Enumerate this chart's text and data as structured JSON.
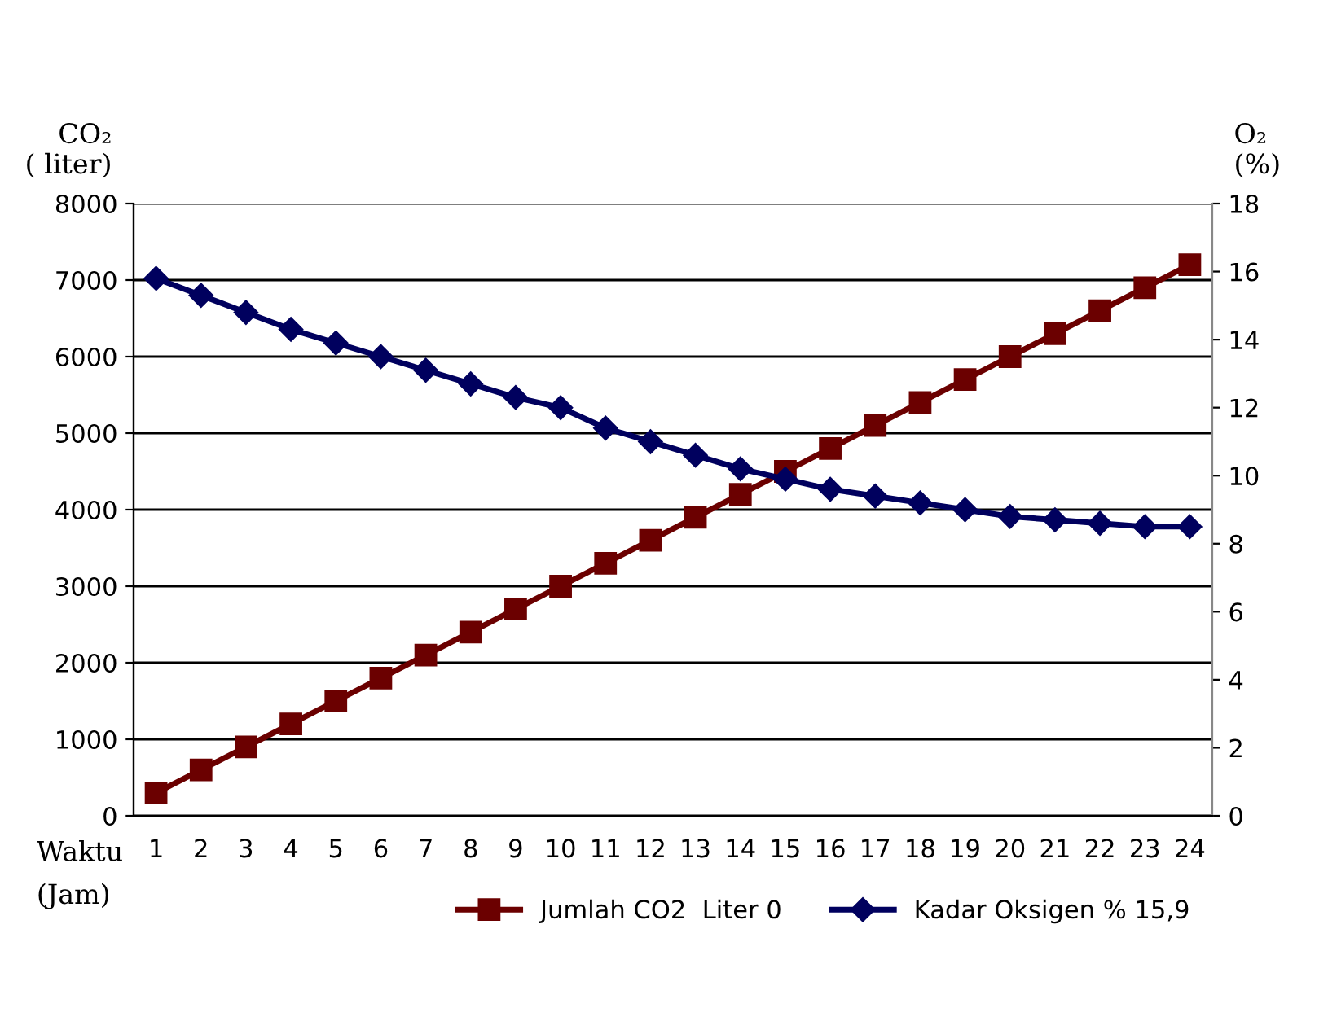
{
  "chart_data": {
    "type": "line",
    "ylabel": "CO₂\n( liter)",
    "y2label": "O₂\n(%)",
    "xlabel": "Waktu\n(Jam)",
    "categories": [
      "1",
      "2",
      "3",
      "4",
      "5",
      "6",
      "7",
      "8",
      "9",
      "10",
      "11",
      "12",
      "13",
      "14",
      "15",
      "16",
      "17",
      "18",
      "19",
      "20",
      "21",
      "22",
      "23",
      "24"
    ],
    "series": [
      {
        "name": "Jumlah CO2  Liter 0",
        "color": "#6b0000",
        "marker": "square",
        "values": [
          300,
          600,
          900,
          1200,
          1500,
          1800,
          2100,
          2400,
          2700,
          3000,
          3300,
          3600,
          3900,
          4200,
          4500,
          4800,
          5100,
          5400,
          5700,
          6000,
          6300,
          6600,
          6900,
          7200
        ]
      },
      {
        "name": "Kadar Oksigen % 15,9",
        "color": "#00005e",
        "marker": "diamond",
        "axis": "y2",
        "values": [
          15.8,
          15.3,
          14.8,
          14.3,
          13.9,
          13.5,
          13.1,
          12.7,
          12.3,
          12.0,
          11.4,
          11.0,
          10.6,
          10.2,
          9.9,
          9.6,
          9.4,
          9.2,
          9.0,
          8.8,
          8.7,
          8.6,
          8.5,
          8.5
        ]
      }
    ],
    "ylim": [
      0,
      8000
    ],
    "yticks": [
      0,
      1000,
      2000,
      3000,
      4000,
      5000,
      6000,
      7000,
      8000
    ],
    "y2lim": [
      0,
      18
    ],
    "y2ticks": [
      0,
      2,
      4,
      6,
      8,
      10,
      12,
      14,
      16,
      18
    ],
    "grid": "y",
    "legend": "bottom right",
    "line_style": "solid"
  }
}
